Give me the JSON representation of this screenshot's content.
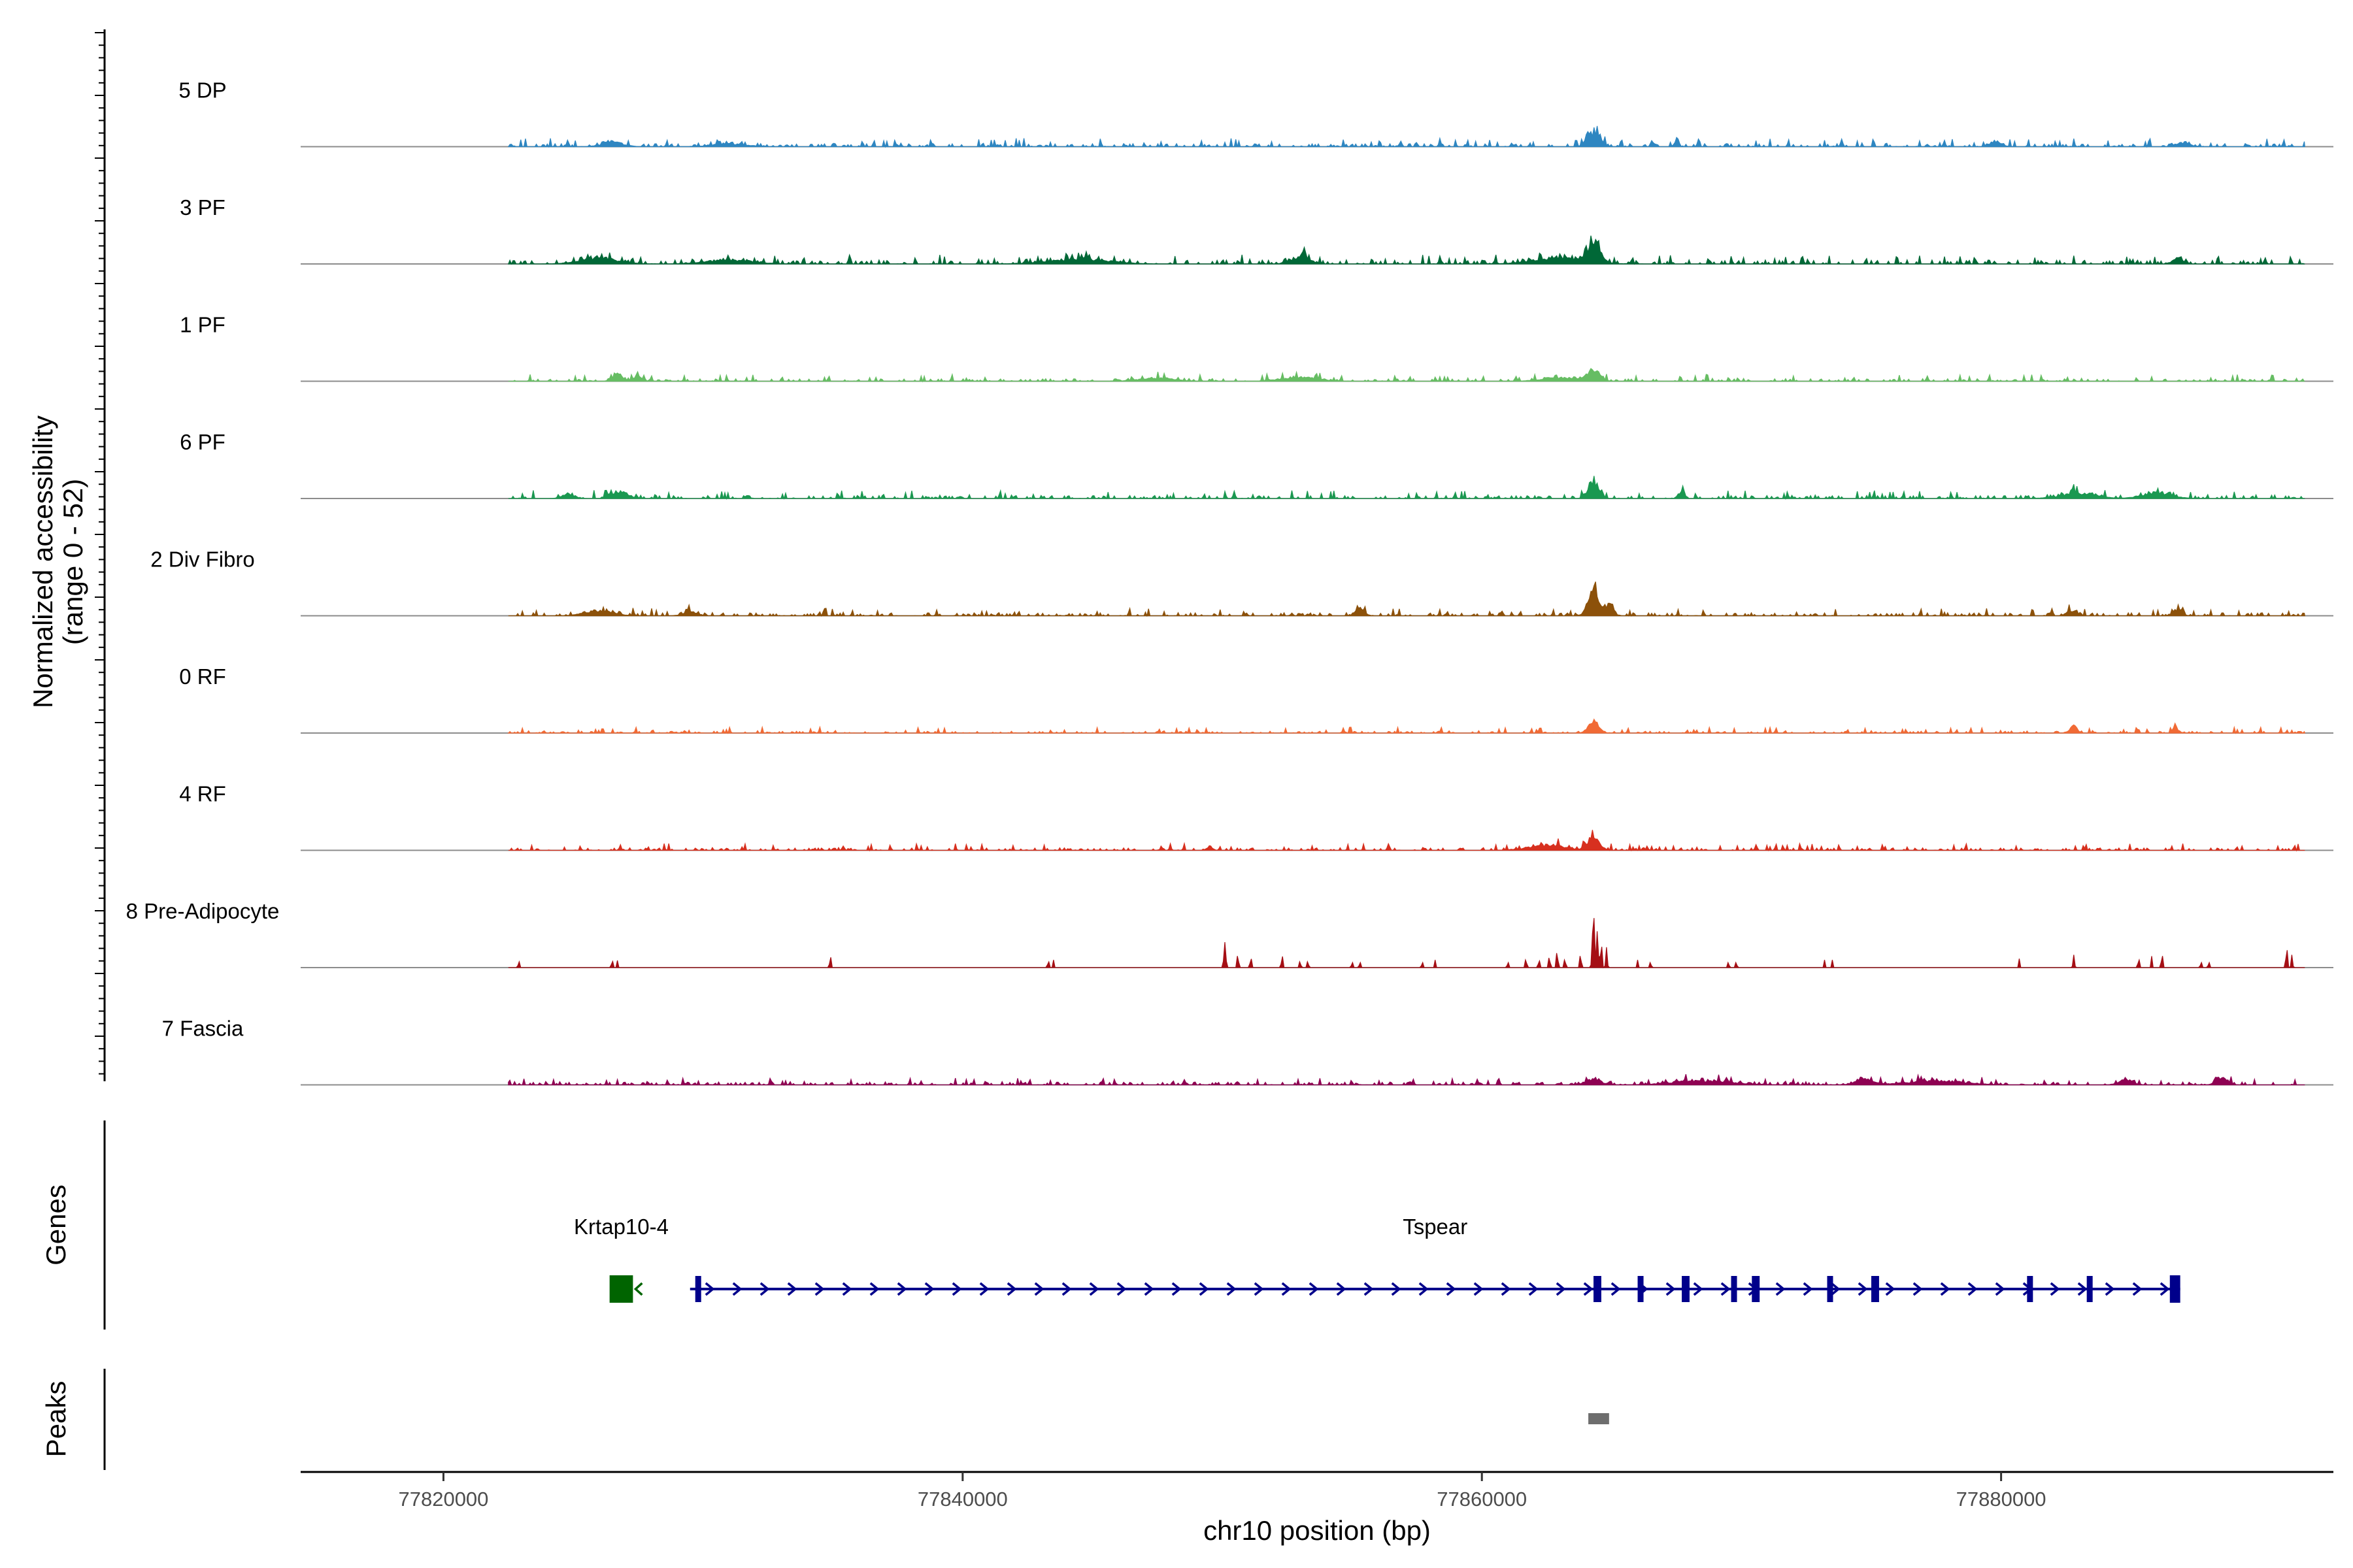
{
  "chart_data": {
    "type": "area",
    "title": "",
    "xlabel": "chr10 position (bp)",
    "ylabel": "Normalized accessibility\n(range 0 - 52)",
    "xlim": [
      77814500,
      77892800
    ],
    "ylim": [
      0,
      52
    ],
    "xticks": [
      77820000,
      77840000,
      77860000,
      77880000
    ],
    "xtick_labels": [
      "77820000",
      "77840000",
      "77860000",
      "77880000"
    ],
    "data_start": 77822500,
    "data_end": 77891700,
    "tracks": [
      {
        "name": "5 DP",
        "color": "#2E86C1",
        "style": "dense",
        "baseline": 1.0,
        "noise": 2.2,
        "peaks": [
          [
            77826500,
            2.3,
            900
          ],
          [
            77831000,
            1.3,
            1500
          ],
          [
            77864300,
            7.5,
            520
          ],
          [
            77867500,
            4.0,
            160
          ],
          [
            77879800,
            2.2,
            500
          ],
          [
            77887000,
            1.8,
            600
          ]
        ]
      },
      {
        "name": "3 PF",
        "color": "#006837",
        "style": "dense",
        "baseline": 1.3,
        "noise": 2.4,
        "peaks": [
          [
            77826000,
            2.8,
            1600
          ],
          [
            77831000,
            2.0,
            2000
          ],
          [
            77844500,
            2.5,
            2500
          ],
          [
            77853000,
            3.5,
            800
          ],
          [
            77864300,
            9.5,
            550
          ],
          [
            77863000,
            3.0,
            2200
          ],
          [
            77886800,
            3.2,
            400
          ]
        ]
      },
      {
        "name": "1 PF",
        "color": "#66BD63",
        "style": "dense",
        "baseline": 0.8,
        "noise": 1.8,
        "peaks": [
          [
            77826700,
            3.5,
            450
          ],
          [
            77827500,
            3.0,
            300
          ],
          [
            77847500,
            1.5,
            1500
          ],
          [
            77853000,
            2.0,
            1500
          ],
          [
            77864300,
            5.8,
            500
          ],
          [
            77863000,
            1.8,
            1500
          ]
        ]
      },
      {
        "name": "6 PF",
        "color": "#1A9850",
        "style": "dense",
        "baseline": 1.0,
        "noise": 2.2,
        "peaks": [
          [
            77824800,
            2.5,
            500
          ],
          [
            77826800,
            3.2,
            700
          ],
          [
            77864300,
            8.2,
            450
          ],
          [
            77867700,
            3.6,
            220
          ],
          [
            77883000,
            2.6,
            1500
          ],
          [
            77886000,
            3.0,
            1200
          ]
        ]
      },
      {
        "name": "2 Div Fibro",
        "color": "#8C510A",
        "style": "dense",
        "baseline": 1.0,
        "noise": 2.0,
        "peaks": [
          [
            77826000,
            2.6,
            1200
          ],
          [
            77829500,
            2.0,
            600
          ],
          [
            77855300,
            3.4,
            400
          ],
          [
            77864300,
            14.5,
            450
          ],
          [
            77864900,
            5.5,
            350
          ],
          [
            77886800,
            3.5,
            350
          ],
          [
            77882700,
            2.5,
            400
          ]
        ]
      },
      {
        "name": "0 RF",
        "color": "#F16A35",
        "style": "dense",
        "baseline": 0.6,
        "noise": 1.6,
        "peaks": [
          [
            77864300,
            5.0,
            450
          ],
          [
            77882800,
            3.3,
            300
          ],
          [
            77886700,
            4.4,
            180
          ]
        ]
      },
      {
        "name": "4 RF",
        "color": "#D7301F",
        "style": "dense",
        "baseline": 0.8,
        "noise": 1.8,
        "peaks": [
          [
            77849500,
            2.0,
            250
          ],
          [
            77864300,
            7.0,
            450
          ],
          [
            77862500,
            2.5,
            1600
          ]
        ]
      },
      {
        "name": "8 Pre-Adipocyte",
        "color": "#A50F15",
        "style": "sparse",
        "baseline": 0,
        "noise": 0,
        "peaks": [
          [
            77822900,
            3.5,
            50
          ],
          [
            77826500,
            3.2,
            60
          ],
          [
            77826700,
            2.8,
            60
          ],
          [
            77834900,
            6.0,
            50
          ],
          [
            77843300,
            3.0,
            60
          ],
          [
            77843500,
            3.0,
            60
          ],
          [
            77850100,
            10.0,
            80
          ],
          [
            77850600,
            6.0,
            60
          ],
          [
            77851100,
            4.5,
            60
          ],
          [
            77852300,
            6.5,
            50
          ],
          [
            77853000,
            3.5,
            50
          ],
          [
            77853300,
            3.5,
            50
          ],
          [
            77855000,
            3.0,
            50
          ],
          [
            77855300,
            3.0,
            50
          ],
          [
            77857700,
            3.0,
            50
          ],
          [
            77858200,
            3.0,
            50
          ],
          [
            77861000,
            3.0,
            50
          ],
          [
            77861700,
            4.0,
            60
          ],
          [
            77862200,
            3.5,
            60
          ],
          [
            77862600,
            5.0,
            60
          ],
          [
            77862900,
            7.5,
            60
          ],
          [
            77863200,
            4.0,
            60
          ],
          [
            77863800,
            6.0,
            60
          ],
          [
            77864300,
            22.0,
            90
          ],
          [
            77864450,
            15.0,
            70
          ],
          [
            77864600,
            10.0,
            70
          ],
          [
            77864800,
            8.0,
            60
          ],
          [
            77866000,
            3.0,
            50
          ],
          [
            77866500,
            3.0,
            50
          ],
          [
            77869500,
            3.0,
            50
          ],
          [
            77869800,
            3.0,
            50
          ],
          [
            77873200,
            3.0,
            50
          ],
          [
            77873500,
            3.0,
            50
          ],
          [
            77880700,
            3.5,
            50
          ],
          [
            77882800,
            5.0,
            60
          ],
          [
            77885300,
            4.0,
            60
          ],
          [
            77885800,
            4.5,
            60
          ],
          [
            77886200,
            6.0,
            60
          ],
          [
            77887700,
            3.0,
            50
          ],
          [
            77888000,
            3.0,
            50
          ],
          [
            77891000,
            9.0,
            60
          ],
          [
            77891200,
            5.0,
            60
          ]
        ]
      },
      {
        "name": "7 Fascia",
        "color": "#8E0152",
        "style": "dense",
        "baseline": 0.9,
        "noise": 1.8,
        "peaks": [
          [
            77864300,
            2.5,
            700
          ],
          [
            77874700,
            3.0,
            700
          ],
          [
            77884800,
            2.5,
            600
          ],
          [
            77888500,
            3.2,
            500
          ],
          [
            77868500,
            2.0,
            2500
          ],
          [
            77877500,
            2.0,
            2500
          ]
        ]
      }
    ],
    "genes": [
      {
        "name": "Krtap10-4",
        "color": "#006400",
        "strand": "-",
        "start": 77826400,
        "end": 77827300,
        "exons": [
          [
            77826400,
            77827300
          ]
        ]
      },
      {
        "name": "Tspear",
        "color": "#00008B",
        "strand": "+",
        "start": 77829500,
        "end": 77886900,
        "exons": [
          [
            77829700,
            77829900
          ],
          [
            77864300,
            77864600
          ],
          [
            77866000,
            77866100
          ],
          [
            77867700,
            77868000
          ],
          [
            77869600,
            77869700
          ],
          [
            77870400,
            77870700
          ],
          [
            77873300,
            77873500
          ],
          [
            77875000,
            77875300
          ],
          [
            77881000,
            77881200
          ],
          [
            77883300,
            77883400
          ],
          [
            77886500,
            77886900
          ]
        ]
      }
    ],
    "peaks_track": [
      [
        77864100,
        77864900
      ]
    ],
    "gene_panel_title": "Genes",
    "peaks_panel_title": "Peaks"
  }
}
